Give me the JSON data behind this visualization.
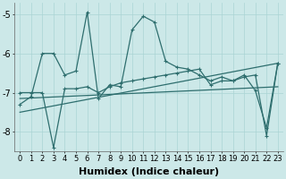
{
  "xlabel": "Humidex (Indice chaleur)",
  "background_color": "#cce8e8",
  "line_color": "#2e6e6e",
  "x": [
    0,
    1,
    2,
    3,
    4,
    5,
    6,
    7,
    8,
    9,
    10,
    11,
    12,
    13,
    14,
    15,
    16,
    17,
    18,
    19,
    20,
    21,
    22,
    23
  ],
  "series1": [
    -7.3,
    -7.1,
    -6.0,
    -6.0,
    -6.55,
    -6.45,
    -4.95,
    -7.15,
    -6.8,
    -6.85,
    -5.4,
    -5.05,
    -5.2,
    -6.2,
    -6.35,
    -6.4,
    -6.55,
    -6.7,
    -6.6,
    -6.7,
    -6.55,
    -6.95,
    -7.9,
    -6.25
  ],
  "series2": [
    -7.0,
    -7.0,
    -7.0,
    -8.4,
    -6.9,
    -6.9,
    -6.85,
    -7.0,
    -6.85,
    -6.75,
    -6.7,
    -6.65,
    -6.6,
    -6.55,
    -6.5,
    -6.45,
    -6.4,
    -6.8,
    -6.7,
    -6.7,
    -6.6,
    -6.55,
    -8.1,
    -6.25
  ],
  "series3_x": [
    0,
    23
  ],
  "series3_y": [
    -7.5,
    -6.25
  ],
  "series4_x": [
    0,
    23
  ],
  "series4_y": [
    -7.15,
    -6.85
  ],
  "ylim": [
    -8.5,
    -4.7
  ],
  "xlim": [
    -0.5,
    23.5
  ],
  "grid_color": "#aad4d4",
  "label_fontsize": 7,
  "tick_fontsize": 6
}
